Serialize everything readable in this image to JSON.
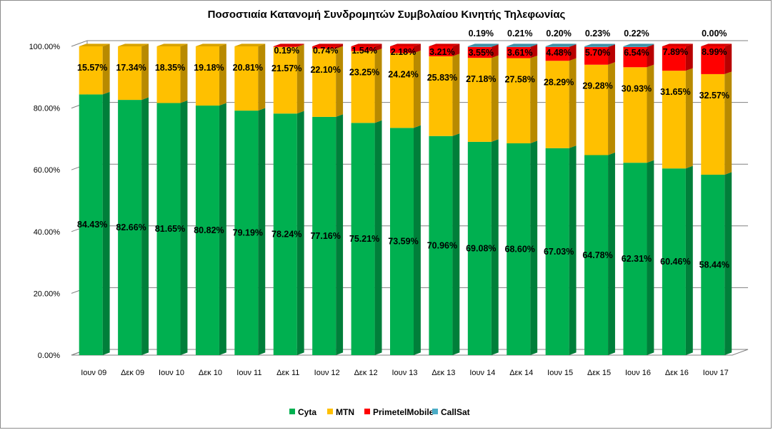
{
  "chart_data": {
    "type": "bar",
    "stacked": true,
    "percent_stacked": true,
    "three_d": true,
    "title": "Ποσοστιαία Κατανομή Συνδρομητών Συμβολαίου Κινητής Τηλεφωνίας",
    "xlabel": "",
    "ylabel": "",
    "ylim": [
      0,
      100
    ],
    "yticks": [
      "0.00%",
      "20.00%",
      "40.00%",
      "60.00%",
      "80.00%",
      "100.00%"
    ],
    "grid": true,
    "legend_position": "bottom",
    "categories": [
      "Ιουν 09",
      "Δεκ 09",
      "Ιουν 10",
      "Δεκ 10",
      "Ιουν 11",
      "Δεκ 11",
      "Ιουν 12",
      "Δεκ 12",
      "Ιουν 13",
      "Δεκ 13",
      "Ιουν 14",
      "Δεκ 14",
      "Ιουν 15",
      "Δεκ 15",
      "Ιουν 16",
      "Δεκ 16",
      "Ιουν 17"
    ],
    "series": [
      {
        "name": "Cyta",
        "color": "#00b050",
        "values": [
          84.43,
          82.66,
          81.65,
          80.82,
          79.19,
          78.24,
          77.16,
          75.21,
          73.59,
          70.96,
          69.08,
          68.6,
          67.03,
          64.78,
          62.31,
          60.46,
          58.44
        ],
        "labels": [
          "84.43%",
          "82.66%",
          "81.65%",
          "80.82%",
          "79.19%",
          "78.24%",
          "77.16%",
          "75.21%",
          "73.59%",
          "70.96%",
          "69.08%",
          "68.60%",
          "67.03%",
          "64.78%",
          "62.31%",
          "60.46%",
          "58.44%"
        ]
      },
      {
        "name": "MTN",
        "color": "#ffc000",
        "values": [
          15.57,
          17.34,
          18.35,
          19.18,
          20.81,
          21.57,
          22.1,
          23.25,
          24.24,
          25.83,
          27.18,
          27.58,
          28.29,
          29.28,
          30.93,
          31.65,
          32.57
        ],
        "labels": [
          "15.57%",
          "17.34%",
          "18.35%",
          "19.18%",
          "20.81%",
          "21.57%",
          "22.10%",
          "23.25%",
          "24.24%",
          "25.83%",
          "27.18%",
          "27.58%",
          "28.29%",
          "29.28%",
          "30.93%",
          "31.65%",
          "32.57%"
        ]
      },
      {
        "name": "PrimetelMobile",
        "color": "#ff0000",
        "values": [
          0,
          0,
          0,
          0,
          0,
          0.19,
          0.74,
          1.54,
          2.18,
          3.21,
          3.55,
          3.61,
          4.48,
          5.7,
          6.54,
          7.89,
          8.99
        ],
        "labels": [
          "",
          "",
          "",
          "",
          "",
          "0.19%",
          "0.74%",
          "1.54%",
          "2.18%",
          "3.21%",
          "3.55%",
          "3.61%",
          "4.48%",
          "5.70%",
          "6.54%",
          "7.89%",
          "8.99%"
        ]
      },
      {
        "name": "CallSat",
        "color": "#4bacc6",
        "values": [
          0,
          0,
          0,
          0,
          0,
          0,
          0,
          0,
          0,
          0,
          0.19,
          0.21,
          0.2,
          0.23,
          0.22,
          0,
          0.0
        ],
        "labels": [
          "",
          "",
          "",
          "",
          "",
          "",
          "",
          "",
          "",
          "",
          "0.19%",
          "0.21%",
          "0.20%",
          "0.23%",
          "0.22%",
          "",
          "0.00%"
        ]
      }
    ]
  }
}
